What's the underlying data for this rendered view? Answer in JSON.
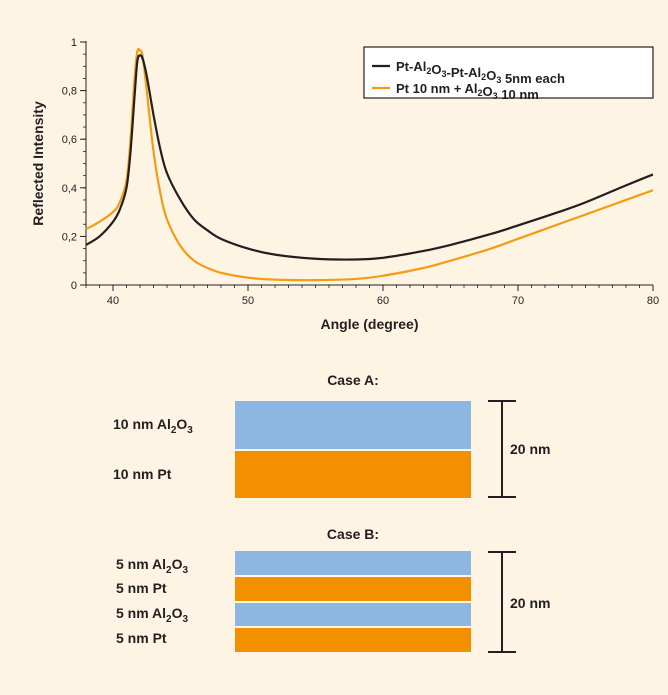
{
  "chart_data": {
    "type": "line",
    "xlabel": "Angle (degree)",
    "ylabel": "Reflected Intensity",
    "xlim": [
      38,
      80
    ],
    "ylim": [
      0,
      1
    ],
    "xticks": [
      40,
      50,
      60,
      70,
      80
    ],
    "xtick_labels": [
      "40",
      "50",
      "60",
      "70",
      "80"
    ],
    "yticks": [
      0,
      0.2,
      0.4,
      0.6,
      0.8,
      1
    ],
    "ytick_labels": [
      "0",
      "0,2",
      "0,4",
      "0,6",
      "0,8",
      "1"
    ],
    "grid": false,
    "legend_position": "top-right",
    "series": [
      {
        "name": "Pt-Al2O3-Pt-Al2O3 5nm each",
        "legend_parts": [
          {
            "t": "Pt-Al",
            "sub": "2"
          },
          {
            "t": "O",
            "sub": "3"
          },
          {
            "t": "-Pt-Al",
            "sub": "2"
          },
          {
            "t": "O",
            "sub": "3"
          },
          {
            "t": " 5nm each",
            "sub": ""
          }
        ],
        "color": "#231f20",
        "x": [
          38,
          39,
          40,
          40.5,
          41,
          41.3,
          41.6,
          41.8,
          42,
          42.2,
          42.5,
          43,
          43.5,
          44,
          45,
          46,
          47,
          48,
          50,
          52,
          55,
          58,
          60,
          63,
          65,
          68,
          70,
          73,
          75,
          78,
          80
        ],
        "y": [
          0.165,
          0.2,
          0.26,
          0.31,
          0.4,
          0.55,
          0.78,
          0.92,
          0.945,
          0.93,
          0.86,
          0.7,
          0.56,
          0.46,
          0.35,
          0.27,
          0.225,
          0.19,
          0.15,
          0.125,
          0.108,
          0.105,
          0.112,
          0.14,
          0.165,
          0.21,
          0.245,
          0.3,
          0.34,
          0.41,
          0.455
        ]
      },
      {
        "name": "Pt 10 nm + Al2O3 10 nm",
        "legend_parts": [
          {
            "t": "Pt 10 nm + Al",
            "sub": "2"
          },
          {
            "t": "O",
            "sub": "3"
          },
          {
            "t": " 10 nm",
            "sub": ""
          }
        ],
        "color": "#f39c12",
        "x": [
          38,
          39,
          40,
          40.5,
          41,
          41.3,
          41.6,
          41.8,
          42,
          42.2,
          42.5,
          43,
          43.5,
          44,
          45,
          46,
          47,
          48,
          50,
          52,
          55,
          58,
          60,
          63,
          65,
          68,
          70,
          73,
          75,
          78,
          80
        ],
        "y": [
          0.23,
          0.26,
          0.3,
          0.34,
          0.43,
          0.6,
          0.85,
          0.96,
          0.965,
          0.94,
          0.8,
          0.55,
          0.38,
          0.27,
          0.16,
          0.1,
          0.07,
          0.05,
          0.03,
          0.022,
          0.02,
          0.025,
          0.038,
          0.07,
          0.1,
          0.15,
          0.19,
          0.25,
          0.29,
          0.35,
          0.39
        ]
      }
    ]
  },
  "diagram": {
    "colors": {
      "al2o3": "#8db6e0",
      "pt": "#f39000"
    },
    "case_a": {
      "title": "Case A:",
      "layers": [
        {
          "material": "al2o3",
          "parts": [
            {
              "t": "10 nm Al",
              "sub": "2"
            },
            {
              "t": "O",
              "sub": "3"
            }
          ]
        },
        {
          "material": "pt",
          "parts": [
            {
              "t": "10 nm Pt",
              "sub": ""
            }
          ]
        }
      ],
      "thickness_label": "20 nm"
    },
    "case_b": {
      "title": "Case B:",
      "layers": [
        {
          "material": "al2o3",
          "parts": [
            {
              "t": "5 nm Al",
              "sub": "2"
            },
            {
              "t": "O",
              "sub": "3"
            }
          ]
        },
        {
          "material": "pt",
          "parts": [
            {
              "t": "5 nm Pt",
              "sub": ""
            }
          ]
        },
        {
          "material": "al2o3",
          "parts": [
            {
              "t": "5 nm Al",
              "sub": "2"
            },
            {
              "t": "O",
              "sub": "3"
            }
          ]
        },
        {
          "material": "pt",
          "parts": [
            {
              "t": "5 nm Pt",
              "sub": ""
            }
          ]
        }
      ],
      "thickness_label": "20 nm"
    }
  }
}
